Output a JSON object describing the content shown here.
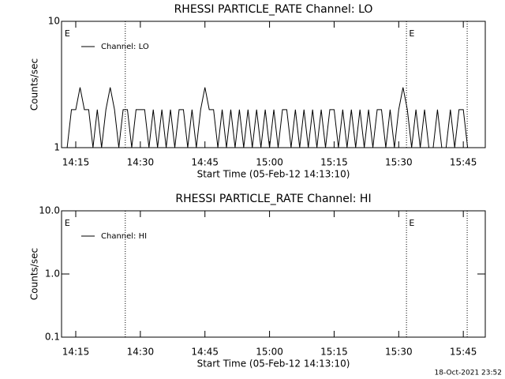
{
  "chart_data": [
    {
      "type": "line",
      "title": "RHESSI PARTICLE_RATE Channel: LO",
      "xlabel": "Start Time (05-Feb-12 14:13:10)",
      "ylabel": "Counts/sec",
      "log_y": true,
      "xlim": [
        851.7,
        950.1
      ],
      "ylim": [
        1,
        10
      ],
      "xticks": [
        {
          "value": 855,
          "label": "14:15"
        },
        {
          "value": 870,
          "label": "14:30"
        },
        {
          "value": 885,
          "label": "14:45"
        },
        {
          "value": 900,
          "label": "15:00"
        },
        {
          "value": 915,
          "label": "15:15"
        },
        {
          "value": 930,
          "label": "15:30"
        },
        {
          "value": 945,
          "label": "15:45"
        }
      ],
      "yticks": [
        1,
        10
      ],
      "markers": [
        866.5,
        931.8,
        945.9
      ],
      "annotations": [
        {
          "text": "E",
          "x": 852.4
        },
        {
          "text": "E",
          "x": 932.4
        }
      ],
      "series": [
        {
          "name": "Channel: LO",
          "color": "#000000",
          "x": [
            853,
            854,
            855,
            856,
            857,
            858,
            859,
            860,
            861,
            862,
            863,
            864,
            865,
            866,
            867,
            868,
            869,
            870,
            871,
            872,
            873,
            874,
            875,
            876,
            877,
            878,
            879,
            880,
            881,
            882,
            883,
            884,
            885,
            886,
            887,
            888,
            889,
            890,
            891,
            892,
            893,
            894,
            895,
            896,
            897,
            898,
            899,
            900,
            901,
            902,
            903,
            904,
            905,
            906,
            907,
            908,
            909,
            910,
            911,
            912,
            913,
            914,
            915,
            916,
            917,
            918,
            919,
            920,
            921,
            922,
            923,
            924,
            925,
            926,
            927,
            928,
            929,
            930,
            931,
            932,
            933,
            934,
            935,
            936,
            937,
            938,
            939,
            940,
            941,
            942,
            943,
            944,
            945,
            946
          ],
          "values": [
            1,
            2,
            2,
            3,
            2,
            2,
            1,
            2,
            1,
            2,
            3,
            2,
            1,
            2,
            2,
            1,
            2,
            2,
            2,
            1,
            2,
            1,
            2,
            1,
            2,
            1,
            2,
            2,
            1,
            2,
            1,
            2,
            3,
            2,
            2,
            1,
            2,
            1,
            2,
            1,
            2,
            1,
            2,
            1,
            2,
            1,
            2,
            1,
            2,
            1,
            2,
            2,
            1,
            2,
            1,
            2,
            1,
            2,
            1,
            2,
            1,
            2,
            2,
            1,
            2,
            1,
            2,
            1,
            2,
            1,
            2,
            1,
            2,
            2,
            1,
            2,
            1,
            2,
            3,
            2,
            1,
            2,
            1,
            2,
            1,
            1,
            2,
            1,
            1,
            2,
            1,
            2,
            2,
            1
          ]
        }
      ]
    },
    {
      "type": "line",
      "title": "RHESSI PARTICLE_RATE Channel: HI",
      "xlabel": "Start Time (05-Feb-12 14:13:10)",
      "ylabel": "Counts/sec",
      "log_y": true,
      "xlim": [
        851.7,
        950.1
      ],
      "ylim": [
        0.1,
        10
      ],
      "xticks": [
        {
          "value": 855,
          "label": "14:15"
        },
        {
          "value": 870,
          "label": "14:30"
        },
        {
          "value": 885,
          "label": "14:45"
        },
        {
          "value": 900,
          "label": "15:00"
        },
        {
          "value": 915,
          "label": "15:15"
        },
        {
          "value": 930,
          "label": "15:30"
        },
        {
          "value": 945,
          "label": "15:45"
        }
      ],
      "yticks": [
        0.1,
        {
          "value": 1,
          "label": "1.0"
        },
        {
          "value": 10,
          "label": "10.0"
        }
      ],
      "markers": [
        866.5,
        931.8,
        945.9
      ],
      "annotations": [
        {
          "text": "E",
          "x": 852.4
        },
        {
          "text": "E",
          "x": 932.4
        }
      ],
      "series": [
        {
          "name": "Channel: HI",
          "color": "#000000",
          "x": [],
          "values": []
        }
      ]
    }
  ],
  "footer": "18-Oct-2021 23:52"
}
